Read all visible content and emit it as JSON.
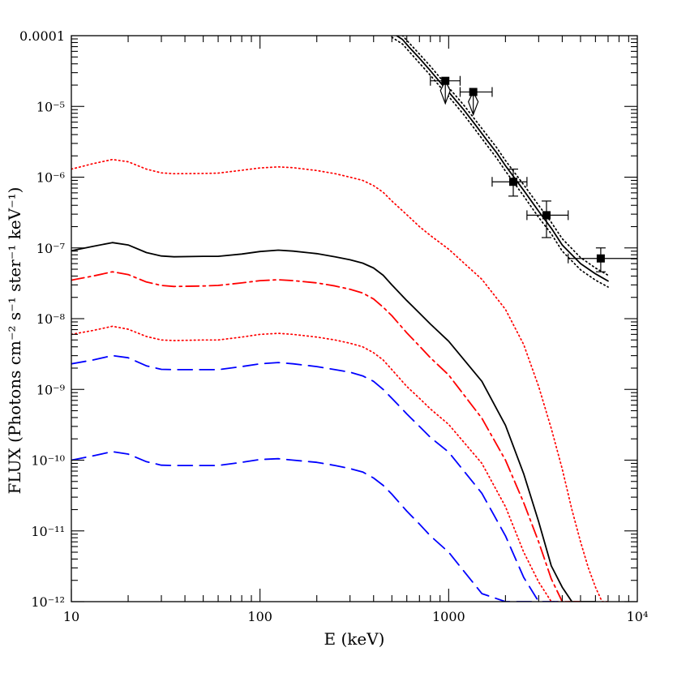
{
  "chart_data": {
    "type": "line",
    "title": "",
    "xlabel": "E (keV)",
    "ylabel": "FLUX (Photons cm⁻² s⁻¹ ster⁻¹ keV⁻¹)",
    "x_scale": "log",
    "y_scale": "log",
    "xlim": [
      10,
      10000
    ],
    "ylim": [
      1e-12,
      0.0001
    ],
    "x_ticks": [
      {
        "value": 10,
        "label": "10"
      },
      {
        "value": 100,
        "label": "100"
      },
      {
        "value": 1000,
        "label": "1000"
      },
      {
        "value": 10000,
        "label": "10⁴"
      }
    ],
    "y_ticks": [
      {
        "value": 0.0001,
        "label": "0.0001"
      },
      {
        "value": 1e-05,
        "label": "10⁻⁵"
      },
      {
        "value": 1e-06,
        "label": "10⁻⁶"
      },
      {
        "value": 1e-07,
        "label": "10⁻⁷"
      },
      {
        "value": 1e-08,
        "label": "10⁻⁸"
      },
      {
        "value": 1e-09,
        "label": "10⁻⁹"
      },
      {
        "value": 1e-10,
        "label": "10⁻¹⁰"
      },
      {
        "value": 1e-11,
        "label": "10⁻¹¹"
      },
      {
        "value": 1e-12,
        "label": "10⁻¹²"
      }
    ],
    "grid": false,
    "series": [
      {
        "style": "solid",
        "color": "#000000",
        "x": [
          10,
          13,
          16.5,
          20,
          25,
          30,
          35,
          50,
          60,
          80,
          100,
          125,
          150,
          200,
          250,
          300,
          350,
          400,
          450,
          500,
          600,
          700,
          800,
          1000,
          1500,
          2000,
          2500,
          3000,
          3500,
          4000,
          4500,
          5000,
          5500,
          6000
        ],
        "y": [
          9.1e-08,
          1.05e-07,
          1.19e-07,
          1.1e-07,
          8.6e-08,
          7.7e-08,
          7.5e-08,
          7.6e-08,
          7.6e-08,
          8.2e-08,
          8.9e-08,
          9.3e-08,
          9e-08,
          8.3e-08,
          7.5e-08,
          6.8e-08,
          6.1e-08,
          5.2e-08,
          4.1e-08,
          3e-08,
          1.8e-08,
          1.2e-08,
          8.4e-09,
          4.8e-09,
          1.3e-09,
          3.1e-10,
          6.4e-11,
          1.35e-11,
          3.2e-12,
          1.6e-12,
          1e-12,
          1e-12,
          1e-12,
          1e-12
        ]
      },
      {
        "style": "dotted",
        "color": "#ff0000",
        "x": [
          10,
          13,
          16.5,
          20,
          25,
          30,
          35,
          50,
          60,
          80,
          100,
          125,
          150,
          200,
          250,
          300,
          350,
          400,
          450,
          500,
          600,
          700,
          800,
          1000,
          1500,
          2000,
          2500,
          3000,
          3500,
          4000,
          4500,
          5000,
          5500,
          6000,
          6500,
          7000
        ],
        "y": [
          1.3e-06,
          1.55e-06,
          1.78e-06,
          1.65e-06,
          1.3e-06,
          1.15e-06,
          1.12e-06,
          1.13e-06,
          1.14e-06,
          1.25e-06,
          1.35e-06,
          1.4e-06,
          1.36e-06,
          1.24e-06,
          1.12e-06,
          1e-06,
          9e-07,
          7.6e-07,
          6.1e-07,
          4.6e-07,
          2.95e-07,
          2e-07,
          1.5e-07,
          9.6e-08,
          3.6e-08,
          1.35e-08,
          4.3e-09,
          1.1e-09,
          2.8e-10,
          7.5e-11,
          2e-11,
          7e-12,
          3e-12,
          1.6e-12,
          1e-12,
          1e-12
        ]
      },
      {
        "style": "dashdot",
        "color": "#ff0000",
        "x": [
          10,
          13,
          16.5,
          20,
          25,
          30,
          35,
          50,
          60,
          80,
          100,
          125,
          150,
          200,
          250,
          300,
          350,
          400,
          450,
          500,
          600,
          700,
          800,
          1000,
          1500,
          2000,
          2500,
          3000,
          3500,
          4000,
          4500,
          5000
        ],
        "y": [
          3.5e-08,
          4e-08,
          4.6e-08,
          4.2e-08,
          3.3e-08,
          2.95e-08,
          2.85e-08,
          2.9e-08,
          2.95e-08,
          3.2e-08,
          3.45e-08,
          3.55e-08,
          3.45e-08,
          3.2e-08,
          2.9e-08,
          2.6e-08,
          2.3e-08,
          1.9e-08,
          1.45e-08,
          1.1e-08,
          6.3e-09,
          4.1e-09,
          2.8e-09,
          1.6e-09,
          3.9e-10,
          1e-10,
          2.5e-11,
          7e-12,
          2.1e-12,
          1e-12,
          1e-12,
          1e-12
        ]
      },
      {
        "style": "dotted",
        "color": "#ff0000",
        "x": [
          10,
          13,
          16.5,
          20,
          25,
          30,
          35,
          50,
          60,
          80,
          100,
          125,
          150,
          200,
          250,
          300,
          350,
          400,
          450,
          500,
          600,
          700,
          800,
          1000,
          1500,
          2000,
          2500,
          3000,
          3500,
          4000,
          4500
        ],
        "y": [
          6e-09,
          6.8e-09,
          7.8e-09,
          7.1e-09,
          5.6e-09,
          5e-09,
          4.9e-09,
          5e-09,
          5e-09,
          5.5e-09,
          6e-09,
          6.2e-09,
          6e-09,
          5.5e-09,
          5e-09,
          4.5e-09,
          4e-09,
          3.3e-09,
          2.6e-09,
          1.9e-09,
          1.1e-09,
          7.5e-10,
          5.3e-10,
          3.2e-10,
          9e-11,
          2.2e-11,
          5e-12,
          1.9e-12,
          1e-12,
          1e-12,
          1e-12
        ]
      },
      {
        "style": "dashed",
        "color": "#0000ff",
        "x": [
          10,
          13,
          16.5,
          20,
          25,
          30,
          35,
          50,
          60,
          80,
          100,
          125,
          150,
          200,
          250,
          300,
          350,
          400,
          450,
          500,
          600,
          700,
          800,
          1000,
          1500,
          2000,
          2500,
          3000,
          3500,
          4000
        ],
        "y": [
          2.3e-09,
          2.6e-09,
          3e-09,
          2.8e-09,
          2.15e-09,
          1.92e-09,
          1.9e-09,
          1.9e-09,
          1.9e-09,
          2.1e-09,
          2.3e-09,
          2.4e-09,
          2.3e-09,
          2.1e-09,
          1.9e-09,
          1.75e-09,
          1.55e-09,
          1.3e-09,
          1e-09,
          7.5e-10,
          4.5e-10,
          3e-10,
          2.1e-10,
          1.3e-10,
          3.4e-11,
          8.5e-12,
          2.2e-12,
          1e-12,
          1e-12,
          1e-12
        ]
      },
      {
        "style": "dashed",
        "color": "#0000ff",
        "x": [
          10,
          13,
          16.5,
          20,
          25,
          30,
          35,
          50,
          60,
          80,
          100,
          125,
          150,
          200,
          250,
          300,
          350,
          400,
          450,
          500,
          600,
          700,
          800,
          1000,
          1500,
          2000,
          2500,
          2800,
          3000
        ],
        "y": [
          1e-10,
          1.15e-10,
          1.32e-10,
          1.22e-10,
          9.5e-11,
          8.5e-11,
          8.4e-11,
          8.4e-11,
          8.4e-11,
          9.3e-11,
          1.02e-10,
          1.05e-10,
          1e-10,
          9.3e-11,
          8.4e-11,
          7.6e-11,
          6.8e-11,
          5.6e-11,
          4.4e-11,
          3.3e-11,
          1.9e-11,
          1.25e-11,
          8.5e-12,
          5e-12,
          1.3e-12,
          1e-12,
          1e-12,
          1e-12,
          1e-12
        ]
      },
      {
        "style": "solid",
        "color": "#000000",
        "x": [
          500,
          530,
          570,
          620,
          700,
          800,
          900,
          1000,
          1200,
          1400,
          1600,
          1800,
          2000,
          2500,
          3000,
          3500,
          4000,
          5000,
          6000,
          7000
        ],
        "y": [
          0.00011,
          0.0001,
          8.8e-05,
          6.8e-05,
          4.8e-05,
          3.2e-05,
          2.2e-05,
          1.6e-05,
          9e-06,
          5.3e-06,
          3.3e-06,
          2.2e-06,
          1.45e-06,
          6.5e-07,
          3.3e-07,
          1.9e-07,
          1.1e-07,
          6e-08,
          4.3e-08,
          3.4e-08
        ]
      },
      {
        "style": "dotted",
        "color": "#000000",
        "x": [
          500,
          530,
          570,
          620,
          700,
          800,
          900,
          1000,
          1200,
          1400,
          1600,
          1800,
          2000,
          2500,
          3000,
          3500,
          4000,
          5000,
          6000,
          7000
        ],
        "y": [
          0.000125,
          0.000114,
          0.0001,
          7.8e-05,
          5.5e-05,
          3.7e-05,
          2.55e-05,
          1.85e-05,
          1.05e-05,
          6.2e-06,
          3.9e-06,
          2.6e-06,
          1.72e-06,
          7.8e-07,
          4e-07,
          2.3e-07,
          1.35e-07,
          7.3e-08,
          5.2e-08,
          4.1e-08
        ]
      },
      {
        "style": "dotted",
        "color": "#000000",
        "x": [
          500,
          530,
          570,
          620,
          700,
          800,
          900,
          1000,
          1200,
          1400,
          1600,
          1800,
          2000,
          2500,
          3000,
          3500,
          4000,
          5000,
          6000,
          7000
        ],
        "y": [
          9.5e-05,
          8.6e-05,
          7.6e-05,
          5.9e-05,
          4.1e-05,
          2.75e-05,
          1.9e-05,
          1.38e-05,
          7.7e-06,
          4.5e-06,
          2.8e-06,
          1.85e-06,
          1.22e-06,
          5.4e-07,
          2.7e-07,
          1.58e-07,
          9e-08,
          4.9e-08,
          3.5e-08,
          2.8e-08
        ]
      }
    ],
    "data_points": [
      {
        "x": 960,
        "y": 2.3e-05,
        "xerr": [
          800,
          1150
        ],
        "upper_limit": true
      },
      {
        "x": 1350,
        "y": 1.6e-05,
        "xerr": [
          1150,
          1700
        ],
        "upper_limit": true
      },
      {
        "x": 2200,
        "y": 8.6e-07,
        "xerr": [
          1700,
          2600
        ],
        "yerr": [
          5.4e-07,
          1.3e-06
        ]
      },
      {
        "x": 3300,
        "y": 2.9e-07,
        "xerr": [
          2600,
          4300
        ],
        "yerr": [
          1.4e-07,
          4.6e-07
        ]
      },
      {
        "x": 6400,
        "y": 7.1e-08,
        "xerr": [
          4300,
          10000
        ],
        "yerr": [
          4.6e-08,
          1e-07
        ]
      }
    ]
  }
}
